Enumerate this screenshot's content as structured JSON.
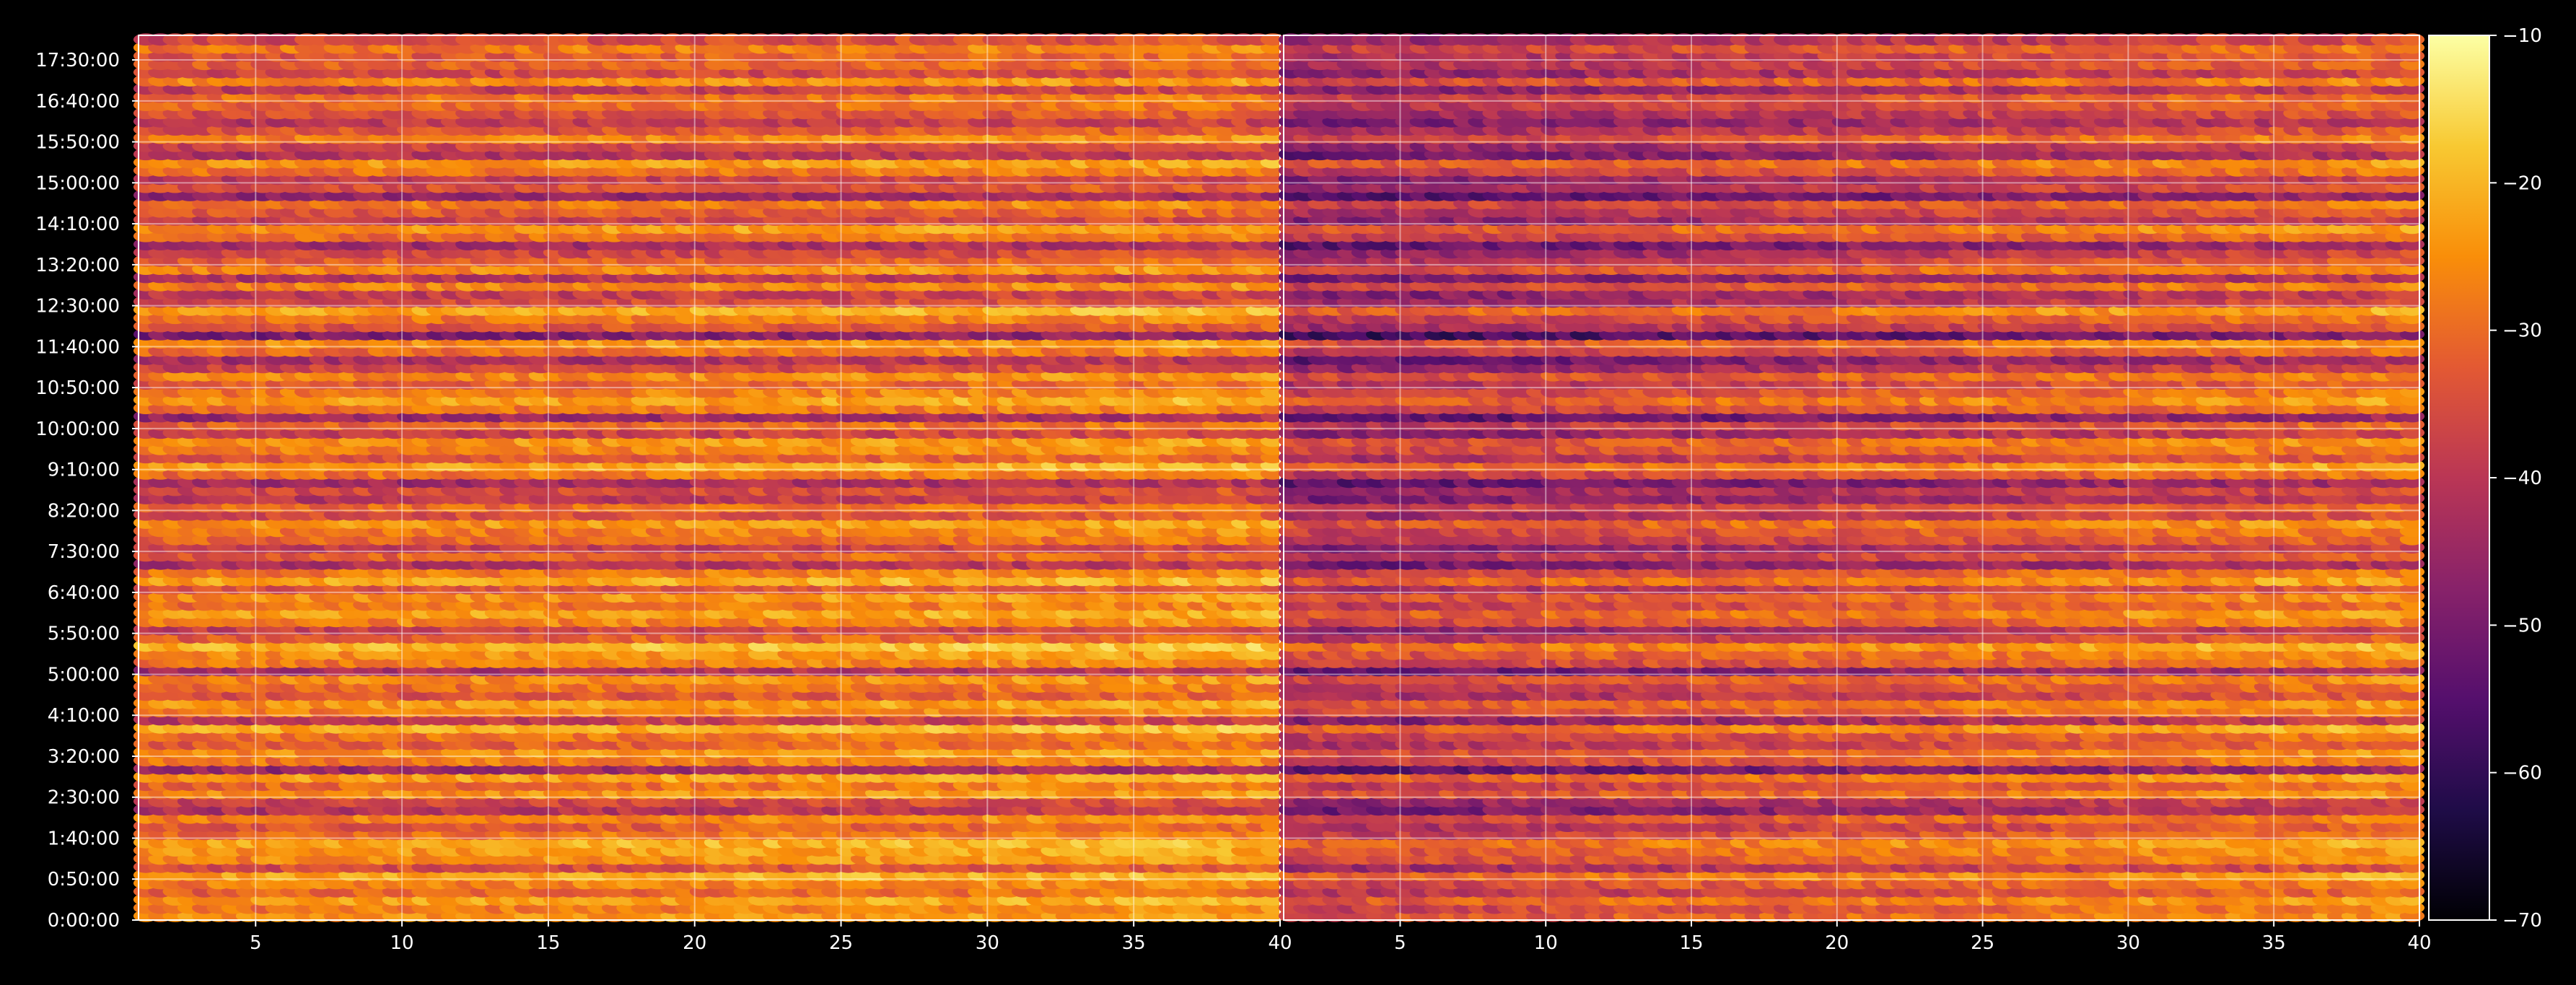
{
  "chart_data": {
    "type": "heatmap",
    "panels": [
      {
        "name": "",
        "x_ticks": [
          5,
          10,
          15,
          20,
          25,
          30,
          35,
          40
        ],
        "x_range": [
          1,
          40
        ],
        "color_bias": 0
      },
      {
        "name": "",
        "x_ticks": [
          5,
          10,
          15,
          20,
          25,
          30,
          35,
          40
        ],
        "x_range": [
          1,
          40
        ],
        "color_bias": -8
      }
    ],
    "y_ticks": [
      "0:00:00",
      "0:50:00",
      "1:40:00",
      "2:30:00",
      "3:20:00",
      "4:10:00",
      "5:00:00",
      "5:50:00",
      "6:40:00",
      "7:30:00",
      "8:20:00",
      "9:10:00",
      "10:00:00",
      "10:50:00",
      "11:40:00",
      "12:30:00",
      "13:20:00",
      "14:10:00",
      "15:00:00",
      "15:50:00",
      "16:40:00",
      "17:30:00"
    ],
    "y_range_minutes": [
      0,
      1080
    ],
    "row_interval_minutes": 10,
    "colorbar": {
      "ticks": [
        -10,
        -20,
        -30,
        -40,
        -50,
        -60,
        -70
      ],
      "range": [
        -70,
        -10
      ],
      "colormap": "inferno"
    },
    "row_levels_dB": [
      -26,
      -29,
      -24,
      -32,
      -28,
      -23,
      -36,
      -27,
      -25,
      -22,
      -30,
      -34,
      -28,
      -42,
      -38,
      -26,
      -31,
      -24,
      -46,
      -29,
      -26,
      -33,
      -30,
      -22,
      -40,
      -28,
      -25,
      -35,
      -31,
      -27,
      -44,
      -29,
      -26,
      -21,
      -33,
      -39,
      -28,
      -24,
      -30,
      -26,
      -35,
      -23,
      -29,
      -43,
      -33,
      -40,
      -32,
      -29,
      -25,
      -36,
      -31,
      -41,
      -37,
      -45,
      -30,
      -23,
      -34,
      -28,
      -26,
      -39,
      -32,
      -46,
      -30,
      -24,
      -29,
      -33,
      -27,
      -38,
      -44,
      -31,
      -26,
      -50,
      -35,
      -30,
      -23,
      -37,
      -40,
      -28,
      -42,
      -27,
      -33,
      -38,
      -45,
      -31,
      -25,
      -39,
      -34,
      -29,
      -47,
      -36,
      -40,
      -30,
      -25,
      -43,
      -38,
      -28,
      -35,
      -41,
      -36,
      -32,
      -30,
      -40,
      -27,
      -38,
      -33,
      -34,
      -29,
      -37
    ],
    "grid": true
  }
}
